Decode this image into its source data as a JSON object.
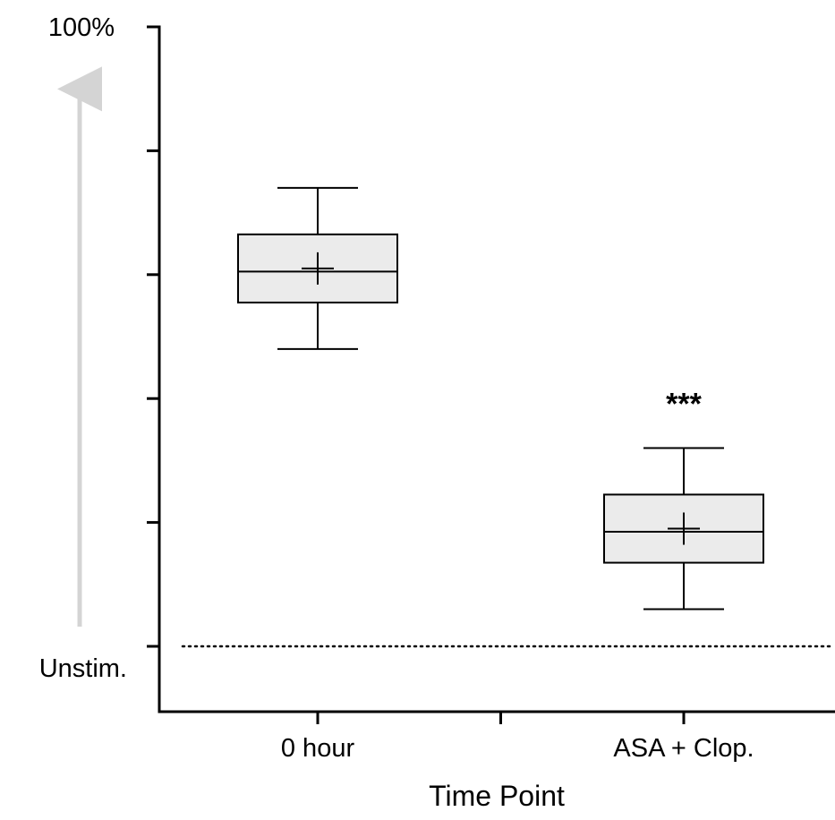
{
  "chart_data": {
    "type": "boxplot",
    "xlabel": "Time Point",
    "ylabel": "",
    "y_top_label": "100%",
    "y_bottom_label": "Unstim.",
    "y_scale_note": "arbitrary scale from Unstim. (0) to 100%",
    "ylim": [
      0,
      100
    ],
    "y_major_ticks": [
      0,
      20,
      40,
      60,
      80,
      100
    ],
    "baseline": {
      "value": 0,
      "style": "dotted"
    },
    "arrow": {
      "direction": "up",
      "from": 0,
      "to": 92,
      "color": "#d4d4d4"
    },
    "categories": [
      "0 hour",
      "ASA + Clop."
    ],
    "boxes": [
      {
        "category": "0 hour",
        "whisker_low": 48,
        "q1": 55.5,
        "median": 60.5,
        "q3": 66.5,
        "whisker_high": 74,
        "mean": 61,
        "annotation": ""
      },
      {
        "category": "ASA + Clop.",
        "whisker_low": 6,
        "q1": 13.5,
        "median": 18.5,
        "q3": 24.5,
        "whisker_high": 32,
        "mean": 19,
        "annotation": "***"
      }
    ],
    "box_fill": "#ebebeb",
    "grid": false,
    "legend": "none"
  }
}
